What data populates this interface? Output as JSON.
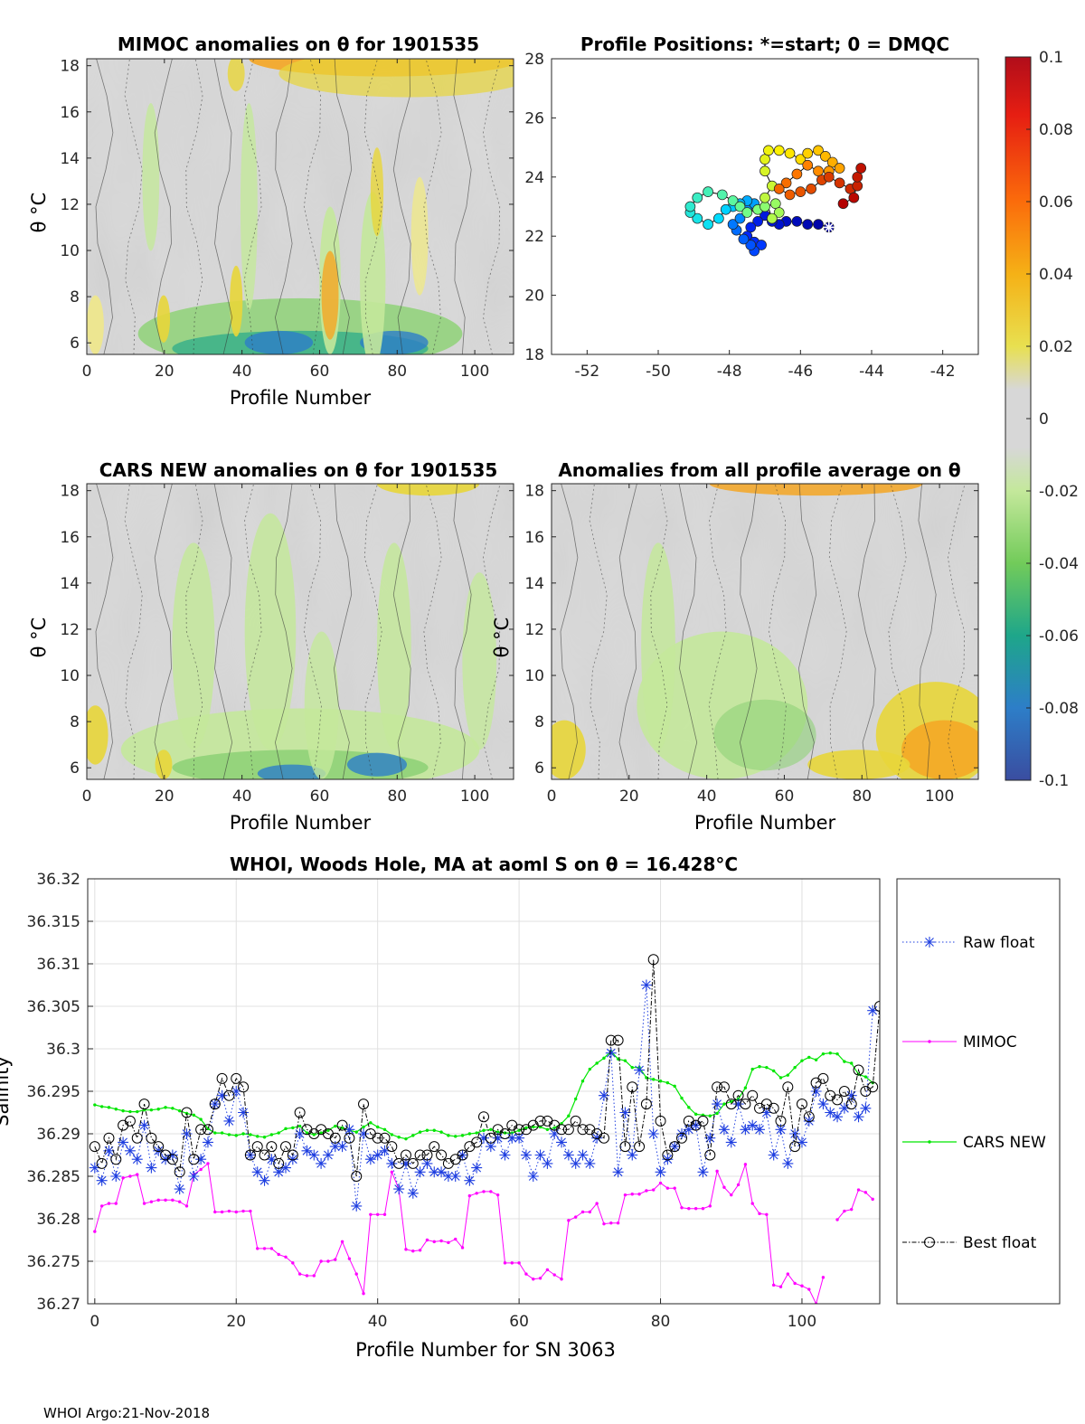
{
  "footer": "WHOI Argo:21-Nov-2018",
  "colorbar": {
    "ticks": [
      "0.1",
      "0.08",
      "0.06",
      "0.04",
      "0.02",
      "0",
      "-0.02",
      "-0.04",
      "-0.06",
      "-0.08",
      "-0.1"
    ],
    "range": [
      -0.1,
      0.1
    ]
  },
  "chart_data": [
    {
      "type": "heatmap",
      "id": "mimoc",
      "title": "MIMOC anomalies on θ  for 1901535",
      "xlabel": "Profile Number",
      "ylabel": "θ °C",
      "xlim": [
        0,
        110
      ],
      "ylim": [
        5.5,
        18.3
      ],
      "xticks": [
        "0",
        "20",
        "40",
        "60",
        "80",
        "100"
      ],
      "yticks": [
        "6",
        "8",
        "10",
        "12",
        "14",
        "16",
        "18"
      ]
    },
    {
      "type": "scatter",
      "id": "positions",
      "title": "Profile Positions: *=start; 0 = DMQC",
      "xlim": [
        -53,
        -41
      ],
      "ylim": [
        18,
        28
      ],
      "xticks": [
        "-52",
        "-50",
        "-48",
        "-46",
        "-44",
        "-42"
      ],
      "yticks": [
        "18",
        "20",
        "22",
        "24",
        "26",
        "28"
      ],
      "track": [
        [
          -45.2,
          22.3
        ],
        [
          -45.5,
          22.4
        ],
        [
          -45.8,
          22.4
        ],
        [
          -46.1,
          22.5
        ],
        [
          -46.4,
          22.5
        ],
        [
          -46.6,
          22.4
        ],
        [
          -46.8,
          22.5
        ],
        [
          -47.0,
          22.7
        ],
        [
          -47.2,
          22.5
        ],
        [
          -47.4,
          22.3
        ],
        [
          -47.5,
          22.0
        ],
        [
          -47.3,
          21.8
        ],
        [
          -47.1,
          21.7
        ],
        [
          -47.3,
          21.5
        ],
        [
          -47.4,
          21.7
        ],
        [
          -47.6,
          21.9
        ],
        [
          -47.8,
          22.2
        ],
        [
          -47.9,
          22.4
        ],
        [
          -47.7,
          22.6
        ],
        [
          -47.5,
          22.9
        ],
        [
          -47.3,
          23.1
        ],
        [
          -47.5,
          23.2
        ],
        [
          -47.7,
          23.1
        ],
        [
          -47.9,
          23.0
        ],
        [
          -48.1,
          22.9
        ],
        [
          -48.3,
          22.6
        ],
        [
          -48.6,
          22.4
        ],
        [
          -48.9,
          22.6
        ],
        [
          -49.1,
          22.8
        ],
        [
          -49.1,
          23.0
        ],
        [
          -48.9,
          23.3
        ],
        [
          -48.6,
          23.5
        ],
        [
          -48.2,
          23.4
        ],
        [
          -47.9,
          23.2
        ],
        [
          -47.7,
          23.0
        ],
        [
          -47.5,
          22.8
        ],
        [
          -47.2,
          22.9
        ],
        [
          -47.0,
          23.0
        ],
        [
          -46.7,
          23.1
        ],
        [
          -46.6,
          22.8
        ],
        [
          -46.8,
          22.6
        ],
        [
          -47.0,
          23.3
        ],
        [
          -46.8,
          23.7
        ],
        [
          -47.0,
          24.2
        ],
        [
          -47.0,
          24.6
        ],
        [
          -46.9,
          24.9
        ],
        [
          -46.6,
          24.9
        ],
        [
          -46.3,
          24.8
        ],
        [
          -46.0,
          24.6
        ],
        [
          -45.8,
          24.8
        ],
        [
          -45.5,
          24.9
        ],
        [
          -45.3,
          24.7
        ],
        [
          -45.1,
          24.5
        ],
        [
          -44.9,
          24.3
        ],
        [
          -45.2,
          24.2
        ],
        [
          -45.5,
          24.2
        ],
        [
          -45.8,
          24.4
        ],
        [
          -46.1,
          24.1
        ],
        [
          -46.4,
          23.8
        ],
        [
          -46.6,
          23.6
        ],
        [
          -46.3,
          23.4
        ],
        [
          -46.0,
          23.5
        ],
        [
          -45.7,
          23.6
        ],
        [
          -45.4,
          23.9
        ],
        [
          -45.2,
          24.0
        ],
        [
          -44.9,
          23.8
        ],
        [
          -44.6,
          23.6
        ],
        [
          -44.4,
          23.7
        ],
        [
          -44.4,
          24.0
        ],
        [
          -44.3,
          24.3
        ],
        [
          -44.5,
          23.3
        ],
        [
          -44.8,
          23.1
        ]
      ]
    },
    {
      "type": "heatmap",
      "id": "cars",
      "title": "CARS NEW anomalies on θ for 1901535",
      "xlabel": "Profile Number",
      "ylabel": "θ °C",
      "xlim": [
        0,
        110
      ],
      "ylim": [
        5.5,
        18.3
      ],
      "xticks": [
        "0",
        "20",
        "40",
        "60",
        "80",
        "100"
      ],
      "yticks": [
        "6",
        "8",
        "10",
        "12",
        "14",
        "16",
        "18"
      ]
    },
    {
      "type": "heatmap",
      "id": "allavg",
      "title": "Anomalies from all profile average on θ",
      "xlabel": "Profile Number",
      "ylabel": "θ °C",
      "xlim": [
        0,
        110
      ],
      "ylim": [
        5.5,
        18.3
      ],
      "xticks": [
        "0",
        "20",
        "40",
        "60",
        "80",
        "100"
      ],
      "yticks": [
        "6",
        "8",
        "10",
        "12",
        "14",
        "16",
        "18"
      ]
    },
    {
      "type": "line",
      "id": "salinity",
      "title": "WHOI, Woods Hole, MA at aoml S on θ = 16.428°C",
      "xlabel": "Profile Number for SN 3063",
      "ylabel": "Salinity",
      "xlim": [
        -1,
        111
      ],
      "ylim": [
        36.27,
        36.32
      ],
      "xticks": [
        0,
        20,
        40,
        60,
        80,
        100
      ],
      "yticks": [
        "36.27",
        "36.275",
        "36.28",
        "36.285",
        "36.29",
        "36.295",
        "36.3",
        "36.305",
        "36.31",
        "36.315",
        "36.32"
      ],
      "legend": [
        "Raw float",
        "MIMOC",
        "CARS NEW",
        "Best float"
      ],
      "series": [
        {
          "name": "Raw float",
          "color": "#1f3fe0",
          "values": [
            36.286,
            36.2845,
            36.288,
            36.285,
            36.289,
            36.288,
            36.287,
            36.291,
            36.286,
            36.288,
            36.287,
            36.2875,
            36.2835,
            36.29,
            36.285,
            36.287,
            36.289,
            36.2935,
            36.2945,
            36.2915,
            36.295,
            36.2925,
            36.2875,
            36.2855,
            36.2845,
            36.287,
            36.2855,
            36.286,
            36.287,
            36.29,
            36.288,
            36.2875,
            36.2865,
            36.2875,
            36.2885,
            36.2885,
            36.2905,
            36.2815,
            36.29,
            36.287,
            36.2875,
            36.288,
            36.2865,
            36.2835,
            36.2865,
            36.283,
            36.2855,
            36.2865,
            36.2855,
            36.2855,
            36.285,
            36.285,
            36.2875,
            36.2845,
            36.286,
            36.2895,
            36.2885,
            36.2895,
            36.2875,
            36.2895,
            36.2895,
            36.2875,
            36.285,
            36.2875,
            36.2865,
            36.29,
            36.289,
            36.2875,
            36.2865,
            36.2875,
            36.2865,
            36.2895,
            36.2945,
            36.2995,
            36.2855,
            36.2925,
            36.2875,
            36.2975,
            36.3075,
            36.29,
            36.2855,
            36.287,
            36.2885,
            36.29,
            36.2905,
            36.291,
            36.2855,
            36.2895,
            36.2935,
            36.2905,
            36.289,
            36.2935,
            36.2905,
            36.291,
            36.2905,
            36.2925,
            36.2875,
            36.2905,
            36.2865,
            36.29,
            36.289,
            36.2915,
            36.295,
            36.2935,
            36.2925,
            36.292,
            36.293,
            36.2945,
            36.292,
            36.293,
            36.3045
          ]
        },
        {
          "name": "MIMOC",
          "color": "#ff00ff",
          "values": [
            36.2785,
            36.2815,
            36.2818,
            36.2818,
            36.2848,
            36.285,
            36.2852,
            36.2818,
            36.282,
            36.2822,
            36.2822,
            36.2822,
            36.282,
            36.2815,
            36.2852,
            36.2858,
            36.2865,
            36.2808,
            36.2808,
            36.2809,
            36.2808,
            36.2809,
            36.2809,
            36.2765,
            36.2765,
            36.2765,
            36.2758,
            36.2755,
            36.2748,
            36.2735,
            36.2733,
            36.2733,
            36.275,
            36.275,
            36.2752,
            36.2773,
            36.2753,
            36.2735,
            36.2712,
            36.2805,
            36.2805,
            36.2805,
            36.2855,
            36.2835,
            36.2764,
            36.2762,
            36.2763,
            36.2775,
            36.2773,
            36.2774,
            36.2772,
            36.2776,
            36.2766,
            36.2827,
            36.283,
            36.2832,
            36.2832,
            36.2828,
            36.2748,
            36.2748,
            36.2748,
            36.2735,
            36.2729,
            36.273,
            36.274,
            36.2734,
            36.2729,
            36.2798,
            36.2802,
            36.2808,
            36.2808,
            36.2818,
            36.2794,
            36.2795,
            36.2795,
            36.2828,
            36.2829,
            36.2829,
            36.2833,
            36.2834,
            36.2842,
            36.2836,
            36.2836,
            36.2813,
            36.2812,
            36.2812,
            36.2812,
            36.2815,
            36.2856,
            36.2837,
            36.2828,
            36.284,
            36.2864,
            36.2818,
            36.2806,
            36.2805,
            36.2722,
            36.272,
            36.2735,
            36.2724,
            36.2721,
            36.2717,
            36.27,
            36.2731,
            null,
            36.2799,
            36.2809,
            36.2811,
            36.2834,
            36.2831,
            36.2823
          ]
        },
        {
          "name": "CARS NEW",
          "color": "#00e600",
          "values": [
            36.2934,
            36.2932,
            36.2931,
            36.2929,
            36.2927,
            36.2926,
            36.2926,
            36.2928,
            36.2928,
            36.2929,
            36.2931,
            36.293,
            36.2927,
            36.2924,
            36.2922,
            36.2917,
            36.2906,
            36.2901,
            36.2901,
            36.2899,
            36.2898,
            36.29,
            36.2899,
            36.2897,
            36.2896,
            36.2899,
            36.2901,
            36.2906,
            36.2907,
            36.2909,
            36.2901,
            36.2899,
            36.2901,
            36.2904,
            36.2909,
            36.2907,
            36.2904,
            36.2902,
            36.2908,
            36.2913,
            36.2908,
            36.2905,
            36.2899,
            36.2896,
            36.2894,
            36.2898,
            36.2902,
            36.2904,
            36.2904,
            36.2902,
            36.2898,
            36.2897,
            36.2898,
            36.29,
            36.2901,
            36.2904,
            36.2905,
            36.2902,
            36.2901,
            36.2901,
            36.2904,
            36.2907,
            36.2908,
            36.2908,
            36.2905,
            36.2907,
            36.2912,
            36.2921,
            36.2941,
            36.2962,
            36.2976,
            36.2983,
            36.2989,
            36.2997,
            36.2988,
            36.2986,
            36.2978,
            36.2978,
            36.2966,
            36.2964,
            36.2962,
            36.296,
            36.2956,
            36.2942,
            36.2931,
            36.2923,
            36.2922,
            36.2921,
            36.2924,
            36.2935,
            36.2938,
            36.2941,
            36.2954,
            36.2976,
            36.2979,
            36.2978,
            36.2974,
            36.2966,
            36.2969,
            36.2978,
            36.2986,
            36.299,
            36.2987,
            36.2994,
            36.2995,
            36.2994,
            36.2985,
            36.2983,
            36.297,
            36.2967,
            36.296
          ]
        },
        {
          "name": "Best float",
          "color": "#000000",
          "values": [
            36.2885,
            36.2865,
            36.2895,
            36.287,
            36.291,
            36.2915,
            36.2895,
            36.2935,
            36.2895,
            36.2885,
            36.2875,
            36.287,
            36.2855,
            36.2925,
            36.287,
            36.2905,
            36.2905,
            36.2935,
            36.2965,
            36.2945,
            36.2965,
            36.2955,
            36.2875,
            36.2885,
            36.2875,
            36.2885,
            36.2865,
            36.2885,
            36.2875,
            36.2925,
            36.2905,
            36.29,
            36.2905,
            36.29,
            36.2895,
            36.291,
            36.2895,
            36.285,
            36.2935,
            36.29,
            36.2895,
            36.2895,
            36.2885,
            36.2865,
            36.2875,
            36.2865,
            36.2875,
            36.2875,
            36.2885,
            36.2875,
            36.2865,
            36.287,
            36.2875,
            36.2885,
            36.289,
            36.292,
            36.2895,
            36.2905,
            36.29,
            36.291,
            36.2905,
            36.2905,
            36.291,
            36.2915,
            36.2915,
            36.291,
            36.2905,
            36.2905,
            36.2915,
            36.2905,
            36.2905,
            36.29,
            36.2895,
            36.301,
            36.301,
            36.2885,
            36.2955,
            36.2885,
            36.2935,
            36.3105,
            36.2915,
            36.2875,
            36.2885,
            36.2895,
            36.2915,
            36.291,
            36.2915,
            36.2875,
            36.2955,
            36.2955,
            36.2935,
            36.2945,
            36.2935,
            36.2945,
            36.293,
            36.2935,
            36.293,
            36.2915,
            36.2955,
            36.2885,
            36.2935,
            36.292,
            36.296,
            36.2965,
            36.2945,
            36.294,
            36.295,
            36.2935,
            36.2975,
            36.295,
            36.2955,
            36.305
          ]
        }
      ]
    }
  ]
}
